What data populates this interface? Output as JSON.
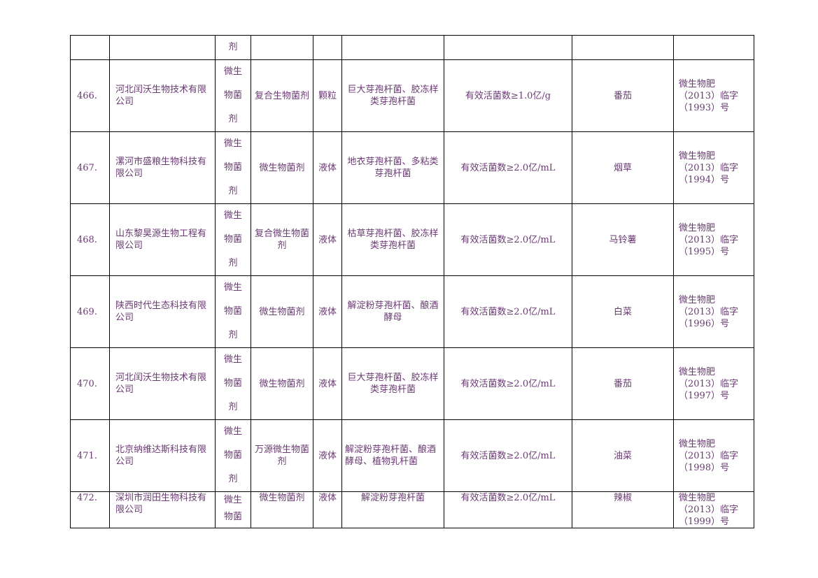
{
  "top_fragment": {
    "category_tail": "剂"
  },
  "rows": [
    {
      "no": "466.",
      "company": "河北闰沃生物技术有限公司",
      "category": [
        "微生",
        "物菌",
        "剂"
      ],
      "product": "复合生物菌剂",
      "form": "颗粒",
      "strains": "巨大芽孢杆菌、胶冻样类芽孢杆菌",
      "content": "有效活菌数≥1.0亿/g",
      "crop": "番茄",
      "reg": [
        "微生物肥",
        "（2013）临字",
        "（1993）号"
      ]
    },
    {
      "no": "467.",
      "company": "漯河市盛粮生物科技有限公司",
      "category": [
        "微生",
        "物菌",
        "剂"
      ],
      "product": "微生物菌剂",
      "form": "液体",
      "strains": "地衣芽孢杆菌、多粘类芽孢杆菌",
      "content": "有效活菌数≥2.0亿/mL",
      "crop": "烟草",
      "reg": [
        "微生物肥",
        "（2013）临字",
        "（1994）号"
      ]
    },
    {
      "no": "468.",
      "company": "山东黎昊源生物工程有限公司",
      "category": [
        "微生",
        "物菌",
        "剂"
      ],
      "product": "复合微生物菌剂",
      "form": "液体",
      "strains": "枯草芽孢杆菌、胶冻样类芽孢杆菌",
      "content": "有效活菌数≥2.0亿/mL",
      "crop": "马铃薯",
      "reg": [
        "微生物肥",
        "（2013）临字",
        "（1995）号"
      ]
    },
    {
      "no": "469.",
      "company": "陕西时代生态科技有限公司",
      "category": [
        "微生",
        "物菌",
        "剂"
      ],
      "product": "微生物菌剂",
      "form": "液体",
      "strains": "解淀粉芽孢杆菌、酿酒酵母",
      "content": "有效活菌数≥2.0亿/mL",
      "crop": "白菜",
      "reg": [
        "微生物肥",
        "（2013）临字",
        "（1996）号"
      ]
    },
    {
      "no": "470.",
      "company": "河北闰沃生物技术有限公司",
      "category": [
        "微生",
        "物菌",
        "剂"
      ],
      "product": "微生物菌剂",
      "form": "液体",
      "strains": "巨大芽孢杆菌、胶冻样类芽孢杆菌",
      "content": "有效活菌数≥2.0亿/mL",
      "crop": "番茄",
      "reg": [
        "微生物肥",
        "（2013）临字",
        "（1997）号"
      ]
    },
    {
      "no": "471.",
      "company": "北京纳维达斯科技有限公司",
      "category": [
        "微生",
        "物菌",
        "剂"
      ],
      "product": "万源微生物菌剂",
      "form": "液体",
      "strains": "解淀粉芽孢杆菌、酿酒酵母、植物乳杆菌",
      "content": "有效活菌数≥2.0亿/mL",
      "crop": "油菜",
      "reg": [
        "微生物肥",
        "（2013）临字",
        "（1998）号"
      ]
    },
    {
      "no": "472.",
      "company": "深圳市润田生物科技有限公司",
      "category": [
        "微生",
        "物菌"
      ],
      "product": "微生物菌剂",
      "form": "液体",
      "strains": "解淀粉芽孢杆菌",
      "content": "有效活菌数≥2.0亿/mL",
      "crop": "辣椒",
      "reg": [
        "微生物肥",
        "（2013）临字",
        "（1999）号"
      ]
    }
  ]
}
